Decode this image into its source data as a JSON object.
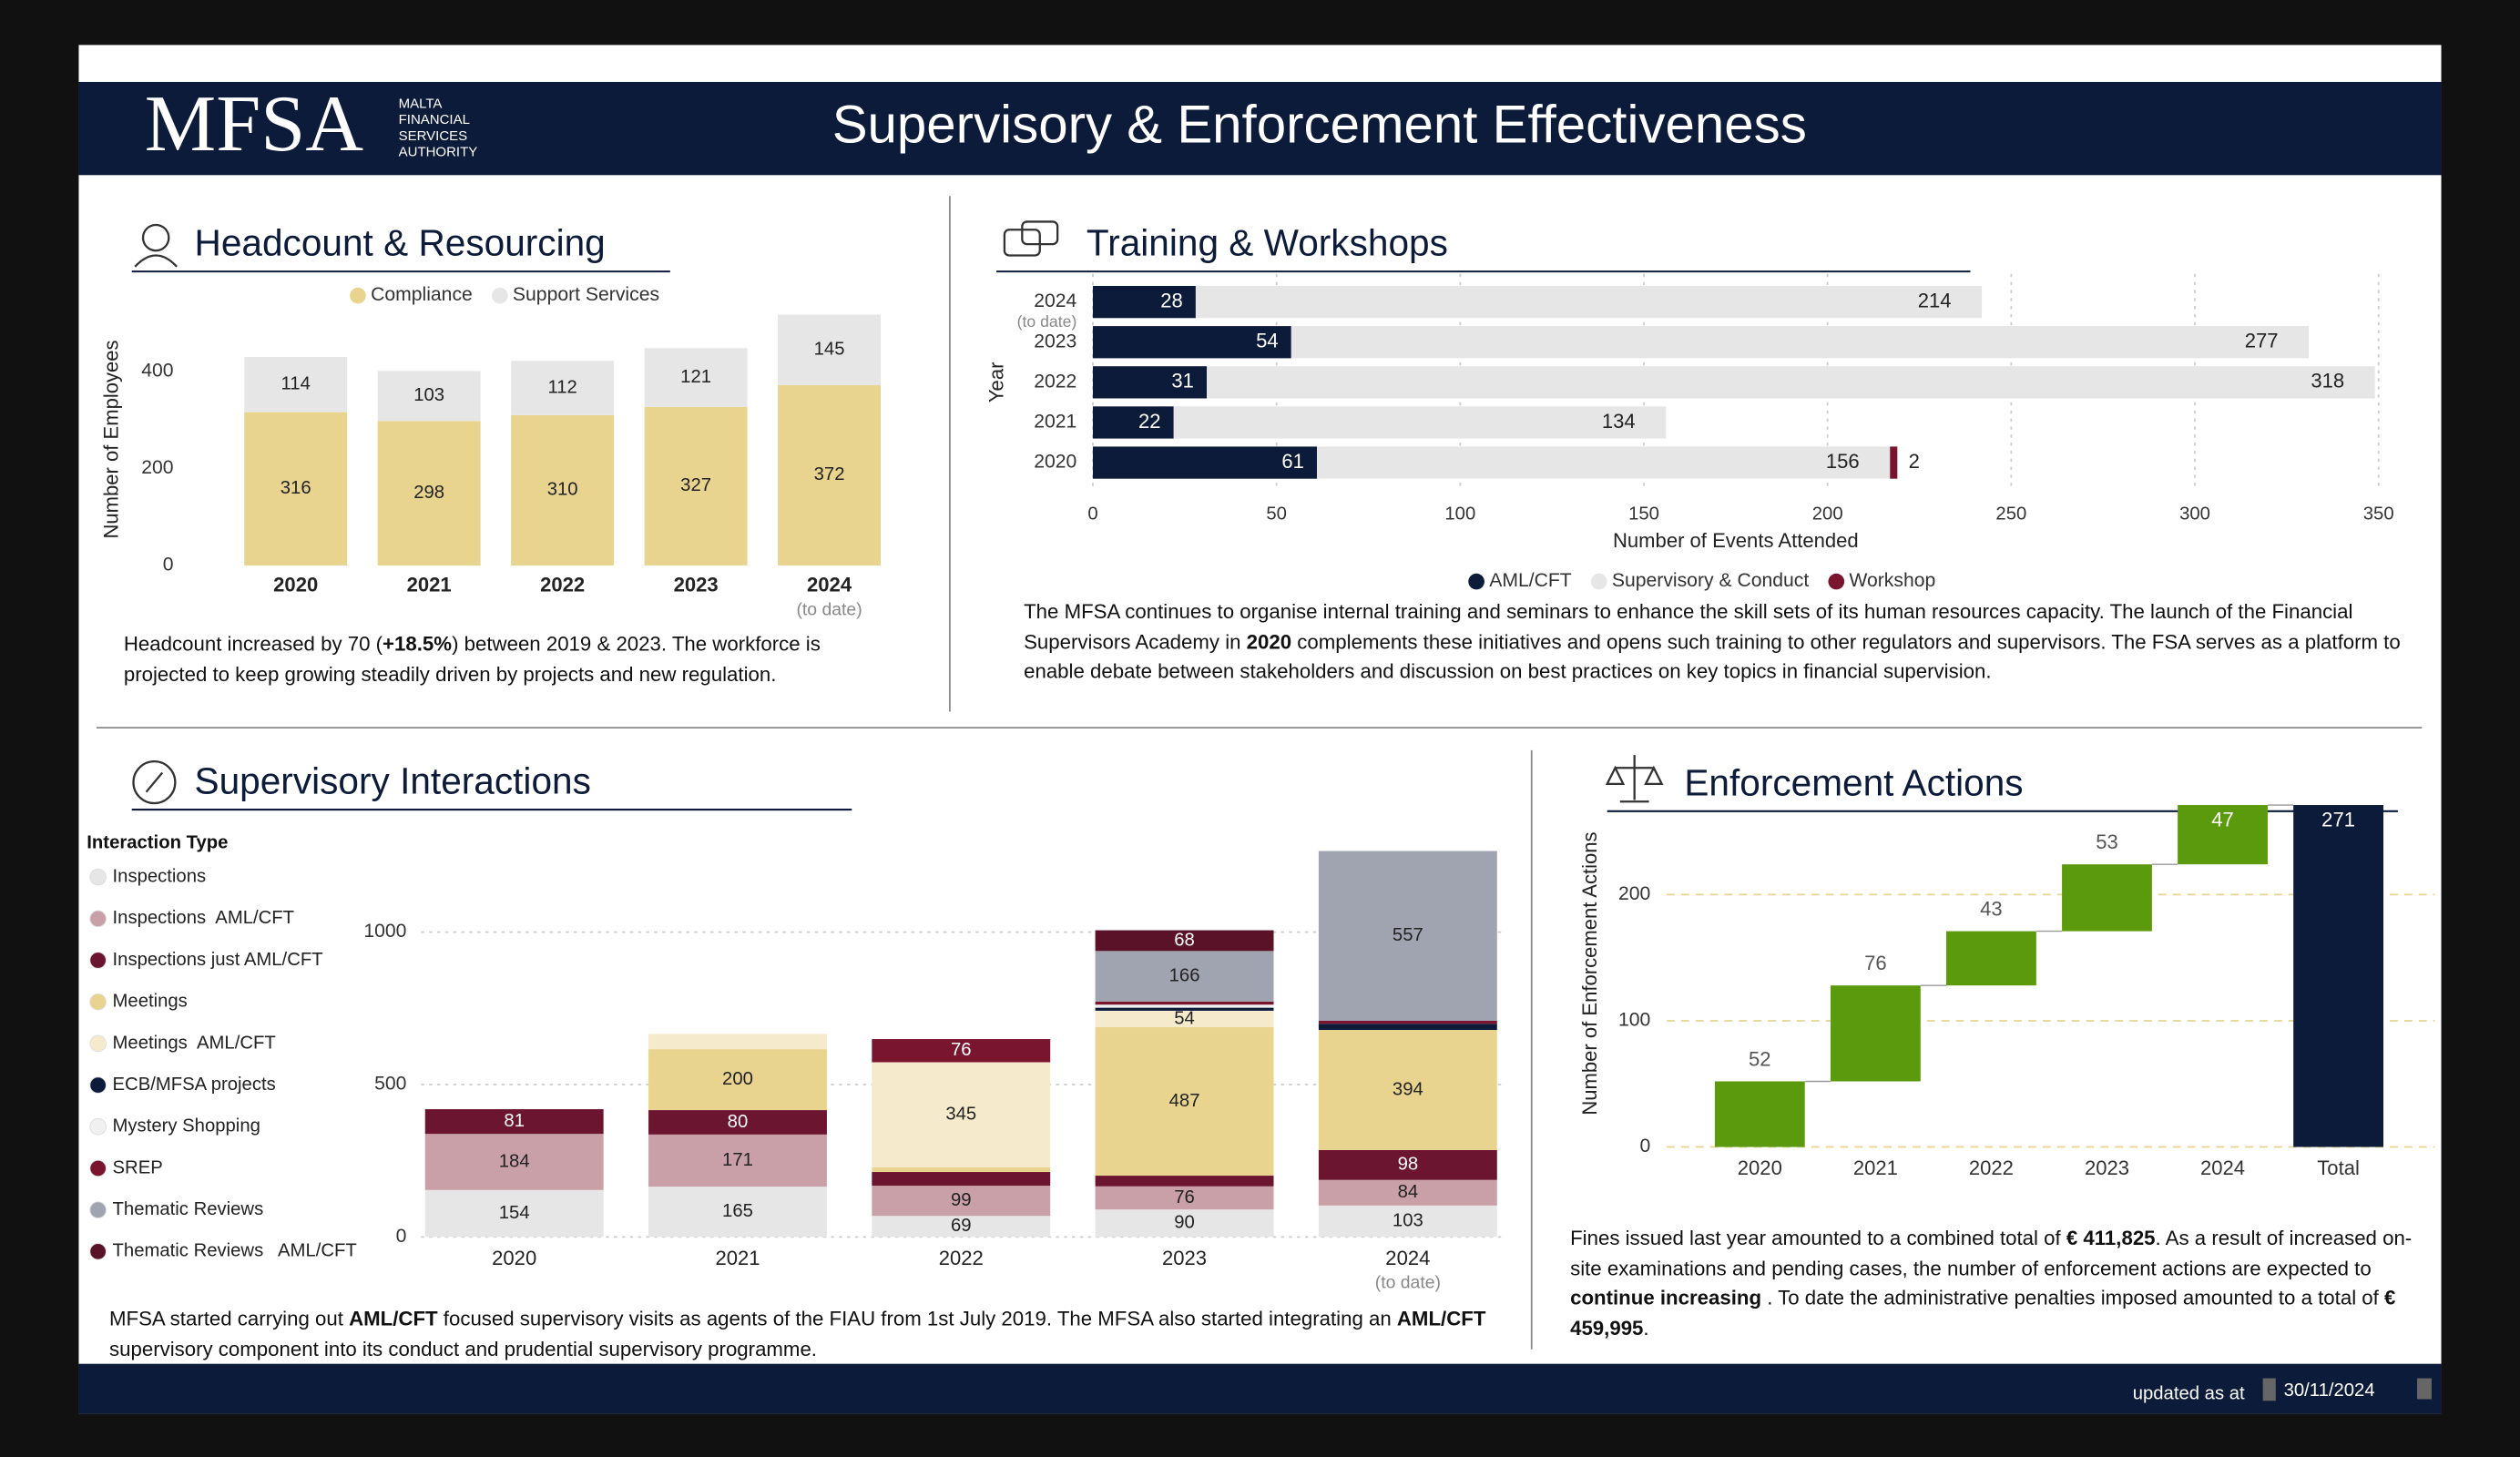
{
  "header": {
    "logo": "MFSA",
    "tagline": [
      "MALTA",
      "FINANCIAL",
      "SERVICES",
      "AUTHORITY"
    ],
    "title": "Supervisory & Enforcement Effectiveness"
  },
  "chart_data": [
    {
      "type": "stacked_bar",
      "title": "Headcount & Resourcing",
      "categories": [
        "2020",
        "2021",
        "2022",
        "2023",
        "2024"
      ],
      "category_notes": [
        null,
        null,
        null,
        null,
        "(to date)"
      ],
      "ylabel": "Number of Employees",
      "ylim": [
        0,
        520
      ],
      "yticks": [
        0,
        200,
        400
      ],
      "grid": false,
      "legend": "top",
      "series": [
        {
          "name": "Compliance",
          "color": "#e8d48f",
          "values": [
            316,
            298,
            310,
            327,
            372
          ]
        },
        {
          "name": "Support Services",
          "color": "#e6e6e6",
          "values": [
            114,
            103,
            112,
            121,
            145
          ]
        }
      ],
      "caption": [
        {
          "text": "Headcount increased by 70 ("
        },
        {
          "text": "+18.5%",
          "bold": true
        },
        {
          "text": ") between 2019 & 2023. The workforce is projected to keep growing steadily driven by projects and new regulation."
        }
      ]
    },
    {
      "type": "stacked_hbar",
      "title": "Training & Workshops",
      "categories": [
        "2024",
        "2023",
        "2022",
        "2021",
        "2020"
      ],
      "category_notes": [
        "(to date)",
        null,
        null,
        null,
        null
      ],
      "xlabel": "Number of Events Attended",
      "ylabel": "Year",
      "xlim": [
        0,
        350
      ],
      "xticks": [
        0,
        50,
        100,
        150,
        200,
        250,
        300,
        350
      ],
      "grid": true,
      "legend": "bottom",
      "series": [
        {
          "name": "AML/CFT",
          "color": "#0d1b3a",
          "values": [
            28,
            54,
            31,
            22,
            61
          ]
        },
        {
          "name": "Supervisory & Conduct",
          "color": "#e6e6e6",
          "values": [
            214,
            277,
            318,
            134,
            156
          ]
        },
        {
          "name": "Workshop",
          "color": "#7a1530",
          "values": [
            null,
            null,
            null,
            null,
            2
          ]
        }
      ],
      "caption": [
        {
          "text": "The MFSA continues to organise internal training and seminars to enhance the skill sets of its human resources capacity. The launch of the Financial Supervisors Academy in "
        },
        {
          "text": "2020",
          "bold": true
        },
        {
          "text": " complements these initiatives and opens such training to other regulators and supervisors. The FSA serves as a platform to enable debate between stakeholders and discussion on best practices on key topics in financial supervision."
        }
      ]
    },
    {
      "type": "stacked_bar",
      "title": "Supervisory Interactions",
      "legend_title": "Interaction Type",
      "legend": "left",
      "categories": [
        "2020",
        "2021",
        "2022",
        "2023",
        "2024"
      ],
      "category_notes": [
        null,
        null,
        null,
        null,
        "(to date)"
      ],
      "ylim": [
        0,
        1270
      ],
      "yticks": [
        0,
        500,
        1000
      ],
      "grid": true,
      "series": [
        {
          "name": "Inspections",
          "color": "#e6e6e6",
          "values": [
            154,
            165,
            69,
            90,
            103
          ]
        },
        {
          "name": "Inspections  AML/CFT",
          "color": "#c9a0a8",
          "values": [
            184,
            171,
            99,
            76,
            84
          ]
        },
        {
          "name": "Inspections just AML/CFT",
          "color": "#6b1530",
          "values": [
            81,
            80,
            45,
            35,
            98
          ]
        },
        {
          "name": "Meetings",
          "color": "#e8d48f",
          "values": [
            0,
            200,
            15,
            487,
            394
          ]
        },
        {
          "name": "Meetings  AML/CFT",
          "color": "#f5ebcc",
          "values": [
            0,
            50,
            345,
            54,
            0
          ]
        },
        {
          "name": "ECB/MFSA projects",
          "color": "#0d1b3a",
          "values": [
            0,
            0,
            0,
            10,
            20
          ]
        },
        {
          "name": "Mystery Shopping",
          "color": "#f0f0f0",
          "values": [
            0,
            0,
            0,
            10,
            0
          ]
        },
        {
          "name": "SREP",
          "color": "#7a1530",
          "values": [
            0,
            0,
            76,
            10,
            10
          ]
        },
        {
          "name": "Thematic Reviews",
          "color": "#a0a4b0",
          "values": [
            0,
            0,
            0,
            166,
            557
          ]
        },
        {
          "name": "Thematic Reviews   AML/CFT",
          "color": "#5a1228",
          "values": [
            0,
            0,
            0,
            68,
            0
          ]
        }
      ],
      "caption": [
        {
          "text": "MFSA started carrying out "
        },
        {
          "text": "AML/CFT",
          "bold": true
        },
        {
          "text": " focused supervisory visits as agents of the FIAU from 1st July 2019. The MFSA also started integrating an "
        },
        {
          "text": "AML/CFT",
          "bold": true
        },
        {
          "text": " supervisory component into its conduct and prudential supervisory programme."
        }
      ]
    },
    {
      "type": "waterfall",
      "title": "Enforcement Actions",
      "categories": [
        "2020",
        "2021",
        "2022",
        "2023",
        "2024",
        "Total"
      ],
      "values": [
        52,
        76,
        43,
        53,
        47,
        271
      ],
      "color": "#5b9a0c",
      "total_color": "#0d1b3a",
      "ylabel": "Number of Enforcement Actions",
      "ylim": [
        0,
        275
      ],
      "yticks": [
        0,
        100,
        200
      ],
      "grid": true,
      "caption": [
        {
          "text": "Fines issued last year amounted to a combined total of "
        },
        {
          "text": "€ 411,825",
          "bold": true
        },
        {
          "text": ". As a result of increased on-site examinations and pending cases, the number of enforcement actions are expected to "
        },
        {
          "text": "continue increasing",
          "bold": true
        },
        {
          "text": " . To date the administrative penalties imposed amounted to a total of "
        },
        {
          "text": "€ 459,995",
          "bold": true
        },
        {
          "text": "."
        }
      ]
    }
  ],
  "footer": {
    "label": "updated as at",
    "date": "30/11/2024"
  }
}
